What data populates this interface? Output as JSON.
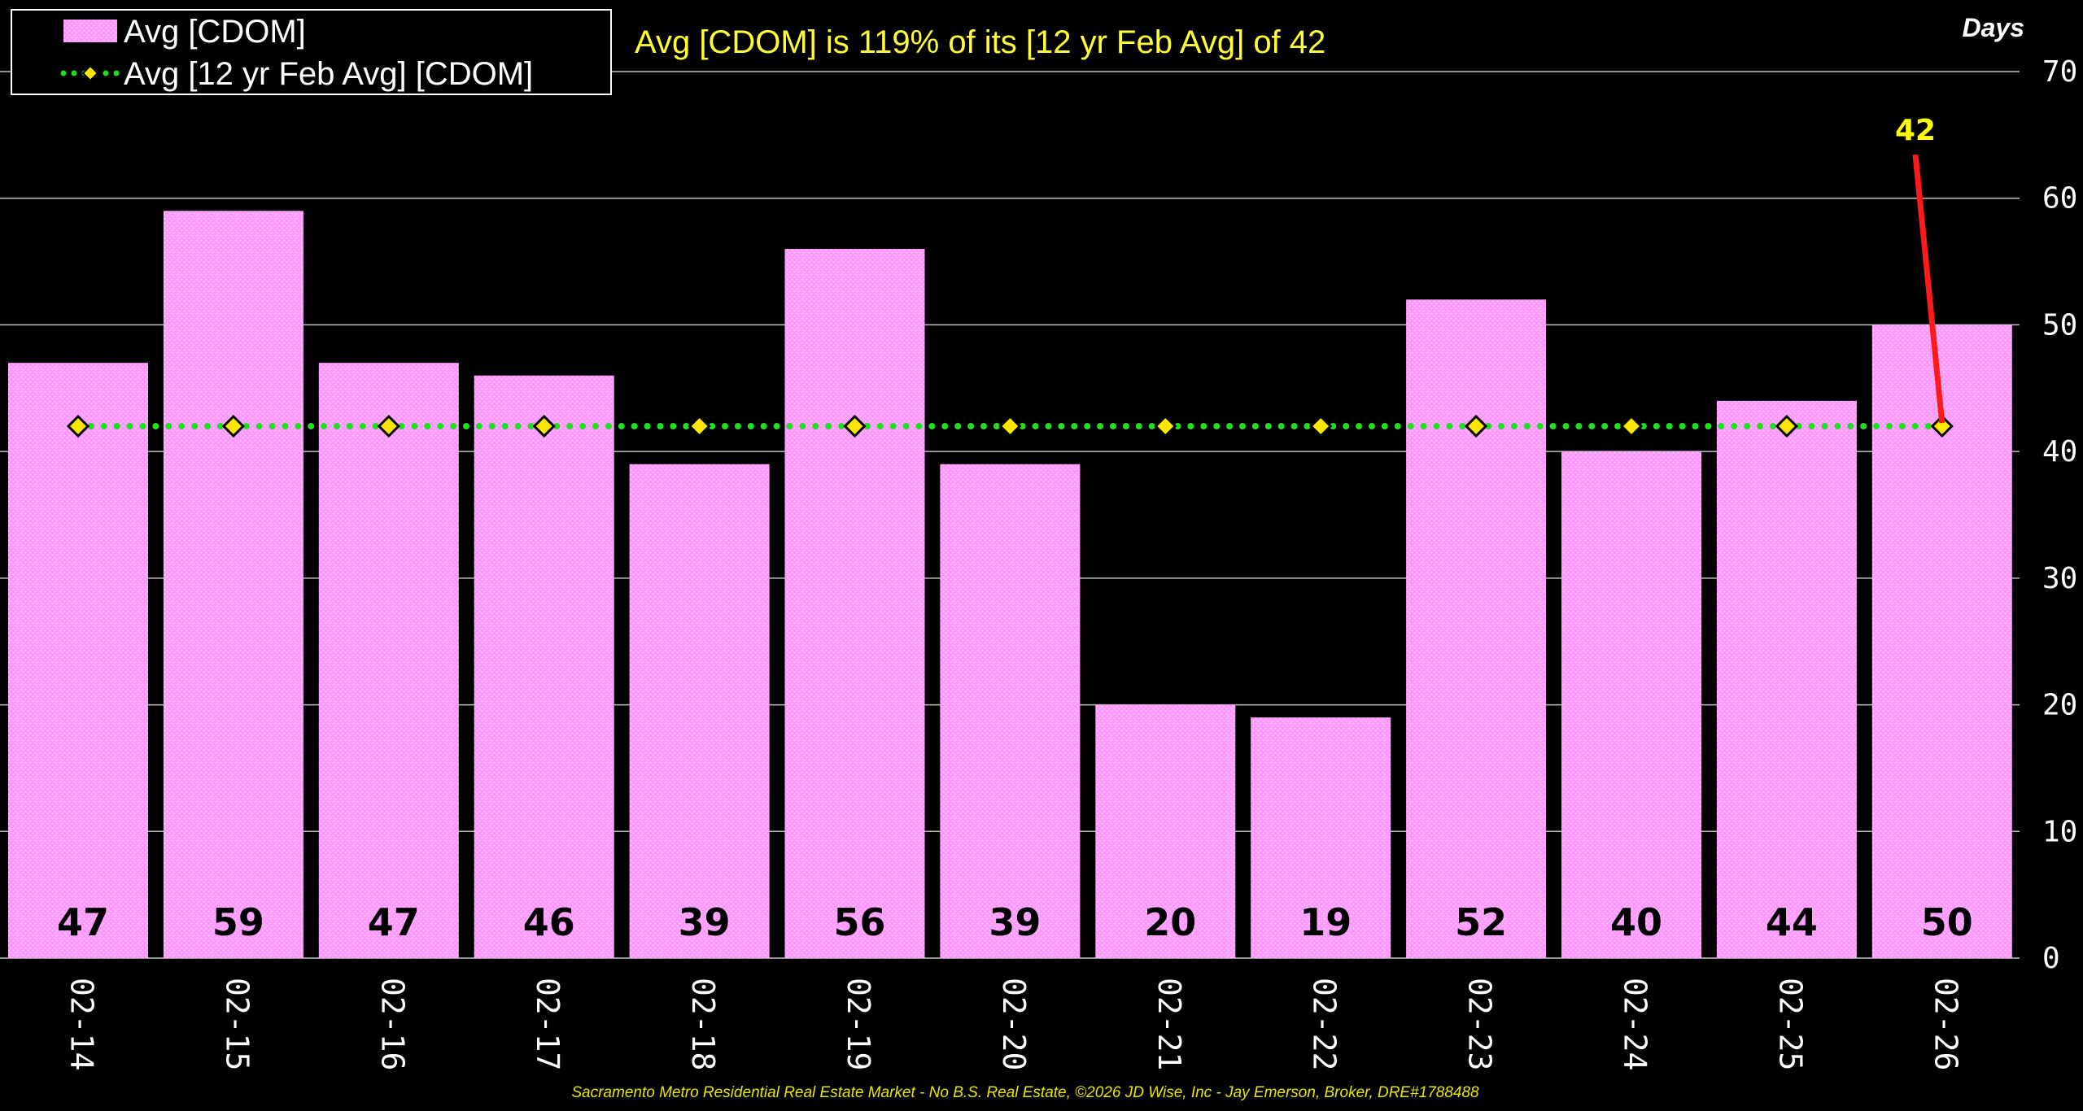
{
  "chart_data": {
    "type": "bar",
    "categories": [
      "02-14",
      "02-15",
      "02-16",
      "02-17",
      "02-18",
      "02-19",
      "02-20",
      "02-21",
      "02-22",
      "02-23",
      "02-24",
      "02-25",
      "02-26"
    ],
    "series": [
      {
        "name": "Avg [CDOM]",
        "type": "bar",
        "values": [
          47,
          59,
          47,
          46,
          39,
          56,
          39,
          20,
          19,
          52,
          40,
          44,
          50
        ],
        "labels": [
          "47",
          "59",
          "47",
          "46",
          "39",
          "56",
          "39",
          "20",
          "19",
          "52",
          "40",
          "44",
          "50"
        ]
      },
      {
        "name": "Avg [12 yr Feb Avg] [CDOM]",
        "type": "line",
        "style": "dotted with diamond markers",
        "values": [
          42,
          42,
          42,
          42,
          42,
          42,
          42,
          42,
          42,
          42,
          42,
          42,
          42
        ]
      }
    ],
    "subtitle": "Avg [CDOM] is 119% of its [12 yr Feb Avg] of 42",
    "ylabel": "Days",
    "ylim": [
      0,
      70
    ],
    "yticks": [
      "0",
      "10",
      "20",
      "30",
      "40",
      "50",
      "60",
      "70"
    ],
    "ytick_values": [
      0,
      10,
      20,
      30,
      40,
      50,
      60,
      70
    ],
    "y_axis_side": "right",
    "grid": true,
    "legend_position": "top-left",
    "annotation": {
      "text": "42",
      "category": "02-26",
      "value": 42
    },
    "footer": "Sacramento Metro Residential Real Estate Market - No B.S. Real Estate, ©2026 JD Wise, Inc - Jay Emerson, Broker, DRE#1788488"
  },
  "colors": {
    "background": "#000000",
    "bar_fill": "#ff99ff",
    "bar_dot": "#ffccff",
    "avg_line": "#22dd22",
    "marker_fill": "#ffe600",
    "callout_line": "#ff1a1a",
    "callout_text": "#ffff00",
    "subtitle": "#ffff33",
    "grid": "#bfbfbf"
  }
}
